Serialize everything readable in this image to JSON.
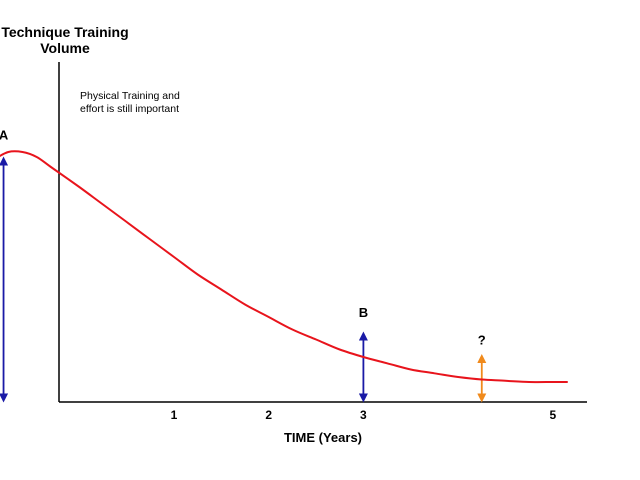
{
  "chart_data": {
    "type": "line",
    "ylabel_lines": [
      "Technique Training",
      "Volume"
    ],
    "xlabel": "TIME (Years)",
    "note_lines": [
      "Physical Training and",
      "effort is still important"
    ],
    "x_ticks": [
      {
        "value": 1,
        "label": "1"
      },
      {
        "value": 2,
        "label": "2"
      },
      {
        "value": 3,
        "label": "3"
      },
      {
        "value": 5,
        "label": "5"
      }
    ],
    "xlim": [
      -1.2,
      5.6
    ],
    "ylim": [
      0,
      1
    ],
    "grid": false,
    "legend": "none",
    "series": [
      {
        "color": "#e8141c",
        "x": [
          -1.05,
          -0.9,
          -0.75,
          -0.6,
          -0.45,
          -0.3,
          0,
          0.25,
          0.5,
          0.75,
          1.0,
          1.25,
          1.5,
          1.75,
          2.0,
          2.25,
          2.5,
          2.75,
          3.0,
          3.25,
          3.5,
          3.75,
          4.0,
          4.25,
          4.5,
          4.75,
          5.0,
          5.15
        ],
        "y": [
          0.93,
          0.97,
          1.0,
          1.0,
          0.98,
          0.94,
          0.86,
          0.79,
          0.72,
          0.65,
          0.58,
          0.51,
          0.45,
          0.39,
          0.34,
          0.29,
          0.25,
          0.21,
          0.18,
          0.155,
          0.13,
          0.115,
          0.1,
          0.09,
          0.085,
          0.08,
          0.08,
          0.08
        ]
      }
    ],
    "arrows": [
      {
        "x": -0.8,
        "y_from": 0,
        "y_to": 0.98,
        "color": "#1a1aa6"
      },
      {
        "x": 3.0,
        "y_from": 0,
        "y_to": 0.28,
        "color": "#1a1aa6"
      },
      {
        "x": 4.25,
        "y_from": 0,
        "y_to": 0.19,
        "color": "#f08a1c"
      }
    ],
    "point_labels": [
      {
        "text": "A",
        "x": -0.8,
        "y": 1.05
      },
      {
        "text": "B",
        "x": 3.0,
        "y": 0.34
      },
      {
        "text": "?",
        "x": 4.25,
        "y": 0.23
      }
    ],
    "axis_color": "#000000"
  }
}
